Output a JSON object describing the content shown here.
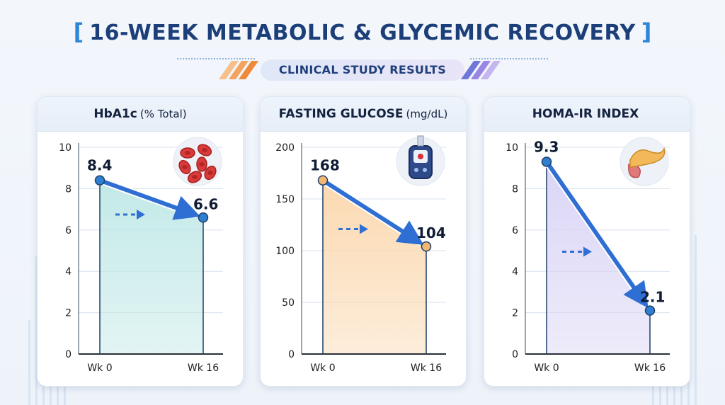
{
  "header": {
    "title": "16-WEEK METABOLIC & GLYCEMIC RECOVERY",
    "subtitle": "CLINICAL STUDY RESULTS"
  },
  "colors": {
    "title": "#1c3f7a",
    "accent": "#2f86d6",
    "arrow": "#2f6fd3"
  },
  "chart_data": [
    {
      "type": "line",
      "title": "HbA1c",
      "unit": "(% Total)",
      "icon": "red-blood-cells-icon",
      "x": [
        "Wk 0",
        "Wk 16"
      ],
      "values": [
        8.4,
        6.6
      ],
      "value_labels": [
        "8.4",
        "6.6"
      ],
      "ylim": [
        0,
        10
      ],
      "yticks": [
        0,
        2,
        4,
        6,
        8,
        10
      ],
      "ytick_labels": [
        "0",
        "2",
        "4",
        "6",
        "8",
        "10"
      ],
      "fill_color": "#bfe8e6",
      "point_color": "#2f7fd0",
      "grid": true
    },
    {
      "type": "line",
      "title": "FASTING GLUCOSE",
      "unit": "(mg/dL)",
      "icon": "glucose-meter-icon",
      "x": [
        "Wk 0",
        "Wk 16"
      ],
      "values": [
        168,
        104
      ],
      "value_labels": [
        "168",
        "104"
      ],
      "ylim": [
        0,
        200
      ],
      "yticks": [
        0,
        50,
        100,
        150,
        200
      ],
      "ytick_labels": [
        "0",
        "50",
        "100",
        "150",
        "200"
      ],
      "fill_color": "#fbd7ad",
      "point_color": "#f2b873",
      "grid": true
    },
    {
      "type": "line",
      "title": "HOMA-IR INDEX",
      "unit": "",
      "icon": "pancreas-icon",
      "x": [
        "Wk 0",
        "Wk 16"
      ],
      "values": [
        9.3,
        2.1
      ],
      "value_labels": [
        "9.3",
        "2.1"
      ],
      "ylim": [
        0,
        10
      ],
      "yticks": [
        0,
        2,
        4,
        6,
        8,
        10
      ],
      "ytick_labels": [
        "0",
        "2",
        "4",
        "6",
        "8",
        "10"
      ],
      "fill_color": "#d9d3f5",
      "point_color": "#2f7fd0",
      "grid": true
    }
  ]
}
